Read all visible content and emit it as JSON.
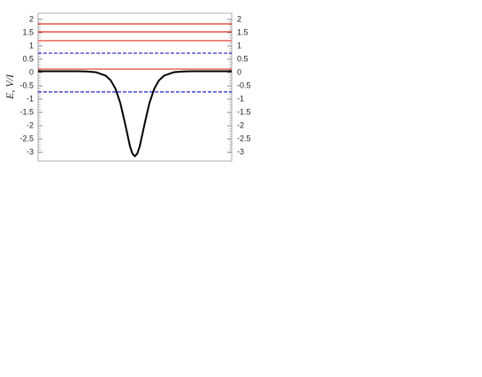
{
  "chart_data": {
    "type": "line",
    "y_label": "E, V/I",
    "x": [
      -5,
      -4,
      -3,
      -2.5,
      -2,
      -1.5,
      -1.25,
      -1,
      -0.75,
      -0.5,
      -0.25,
      -0.125,
      0,
      0.125,
      0.25,
      0.5,
      0.75,
      1,
      1.25,
      1.5,
      2,
      2.5,
      3,
      4,
      5
    ],
    "series": [
      {
        "color": "#000000",
        "values": [
          0.05,
          0.05,
          0.05,
          0.04,
          0.01,
          -0.12,
          -0.29,
          -0.61,
          -1.15,
          -1.94,
          -2.78,
          -3.05,
          -3.15,
          -3.05,
          -2.78,
          -1.94,
          -1.15,
          -0.61,
          -0.29,
          -0.12,
          0.01,
          0.04,
          0.05,
          0.05,
          0.05
        ]
      }
    ],
    "hlines": [
      {
        "value": 1.83,
        "color": "#e03020",
        "style": "solid"
      },
      {
        "value": 1.53,
        "color": "#e03020",
        "style": "solid"
      },
      {
        "value": 1.2,
        "color": "#e03020",
        "style": "solid"
      },
      {
        "value": 0.73,
        "color": "#2020c0",
        "style": "dashed"
      },
      {
        "value": 0.13,
        "color": "#e03020",
        "style": "solid"
      },
      {
        "value": -0.73,
        "color": "#2020c0",
        "style": "dashed"
      }
    ],
    "xlim": [
      -5,
      5
    ],
    "ylim": [
      -3.33,
      2.23
    ],
    "yticks": [
      2,
      1.5,
      1,
      0.5,
      0,
      -0.5,
      -1,
      -1.5,
      -2,
      -2.5,
      -3
    ]
  }
}
